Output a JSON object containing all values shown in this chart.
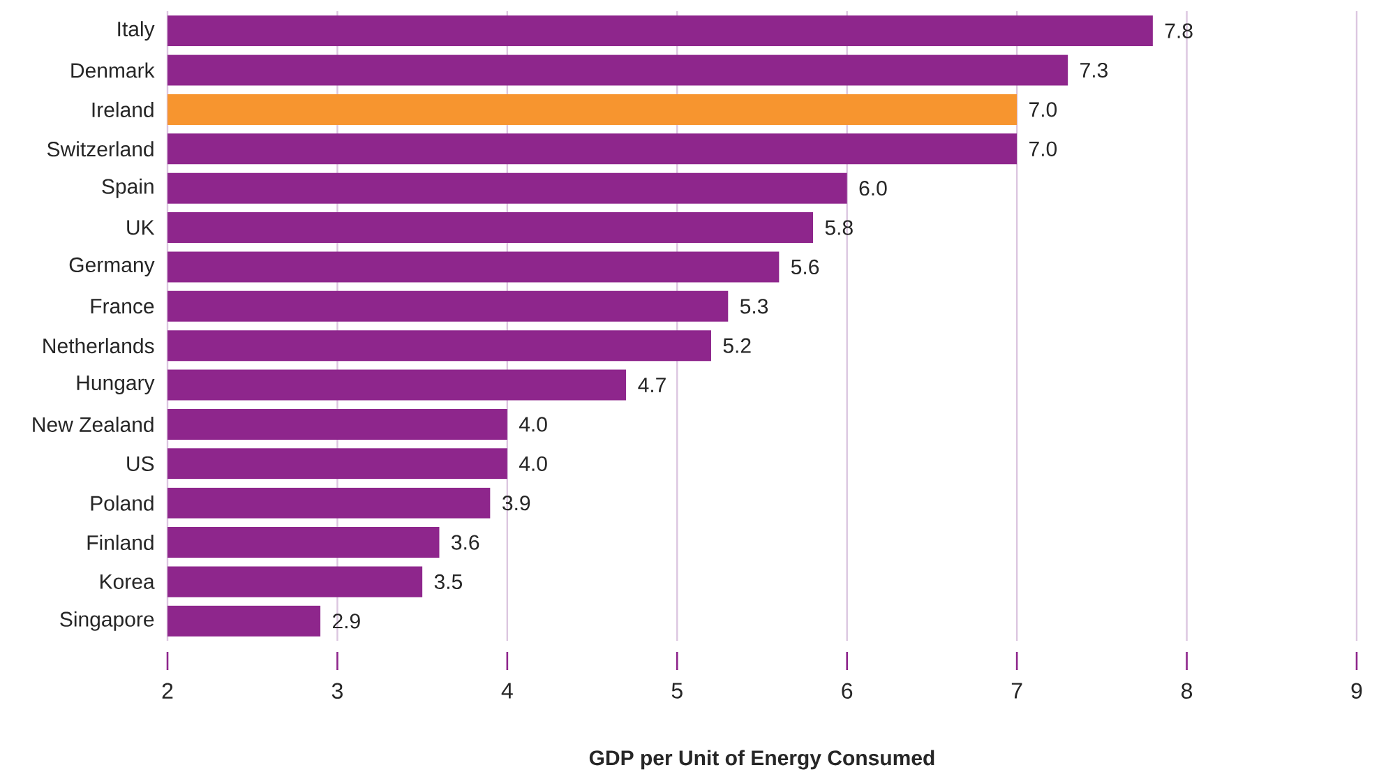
{
  "chart_data": {
    "type": "bar",
    "orientation": "horizontal",
    "xlabel": "GDP per Unit of Energy Consumed",
    "categories": [
      "Italy",
      "Denmark",
      "Ireland",
      "Switzerland",
      "Spain",
      "UK",
      "Germany",
      "France",
      "Netherlands",
      "Hungary",
      "New Zealand",
      "US",
      "Poland",
      "Finland",
      "Korea",
      "Singapore"
    ],
    "values": [
      7.8,
      7.3,
      7.0,
      7.0,
      6.0,
      5.8,
      5.6,
      5.3,
      5.2,
      4.7,
      4.0,
      4.0,
      3.9,
      3.6,
      3.5,
      2.9
    ],
    "value_labels": [
      "7.8",
      "7.3",
      "7.0",
      "7.0",
      "6.0",
      "5.8",
      "5.6",
      "5.3",
      "5.2",
      "4.7",
      "4.0",
      "4.0",
      "3.9",
      "3.6",
      "3.5",
      "2.9"
    ],
    "colors": [
      "#8e268c",
      "#8e268c",
      "#f7952f",
      "#8e268c",
      "#8e268c",
      "#8e268c",
      "#8e268c",
      "#8e268c",
      "#8e268c",
      "#8e268c",
      "#8e268c",
      "#8e268c",
      "#8e268c",
      "#8e268c",
      "#8e268c",
      "#8e268c"
    ],
    "xlim": [
      2,
      9
    ],
    "xticks": [
      2,
      3,
      4,
      5,
      6,
      7,
      8,
      9
    ],
    "grid": "x"
  }
}
